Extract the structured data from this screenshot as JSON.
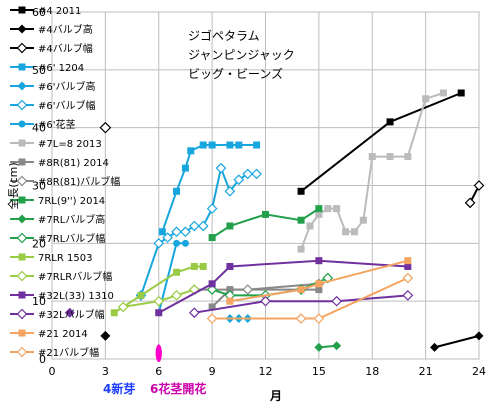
{
  "chart_data": {
    "type": "line",
    "title_lines": [
      "ジゴペタラム",
      "ジャンピンジャック",
      "ビッグ・ビーンズ"
    ],
    "ylabel": "全長(cm)",
    "xlabel": "月",
    "xlim": [
      0,
      24
    ],
    "ylim": [
      0,
      60
    ],
    "xticks": [
      0,
      3,
      6,
      9,
      12,
      15,
      18,
      21,
      24
    ],
    "yticks": [
      0,
      10,
      20,
      30,
      40,
      50,
      60
    ],
    "grid": true,
    "legend_position": "left-inside",
    "series": [
      {
        "name": "#4 2011",
        "color": "#000000",
        "marker": "square",
        "style": "solid",
        "points": [
          [
            14,
            29
          ],
          [
            19,
            41
          ],
          [
            23,
            46
          ]
        ]
      },
      {
        "name": "#4バルブ高",
        "color": "#000000",
        "marker": "diamond",
        "style": "solid",
        "points": [
          [
            21.5,
            2
          ],
          [
            24,
            4
          ]
        ]
      },
      {
        "name": "#4バルブ幅",
        "color": "#000000",
        "marker": "diamond-open",
        "style": "solid",
        "points": [
          [
            23.5,
            27
          ],
          [
            24,
            30
          ]
        ]
      },
      {
        "name": "#6' 1204",
        "color": "#17a6dd",
        "marker": "square",
        "style": "solid",
        "points": [
          [
            6.2,
            22
          ],
          [
            7,
            29
          ],
          [
            7.5,
            33
          ],
          [
            7.8,
            36
          ],
          [
            8.5,
            37
          ],
          [
            9,
            37
          ],
          [
            10,
            37
          ],
          [
            10.5,
            37
          ],
          [
            11.5,
            37
          ]
        ]
      },
      {
        "name": "#6'バルブ高",
        "color": "#17a6dd",
        "marker": "diamond",
        "style": "solid",
        "points": [
          [
            10,
            7
          ],
          [
            10.5,
            7
          ],
          [
            11,
            7
          ]
        ]
      },
      {
        "name": "#6'バルブ幅",
        "color": "#17a6dd",
        "marker": "diamond-open",
        "style": "solid",
        "points": [
          [
            5,
            11
          ],
          [
            6,
            20
          ],
          [
            6.5,
            21
          ],
          [
            7,
            22
          ],
          [
            7.5,
            22
          ],
          [
            8,
            23
          ],
          [
            8.5,
            23
          ],
          [
            9,
            26
          ],
          [
            9.5,
            33
          ],
          [
            10,
            29
          ],
          [
            10.5,
            31
          ],
          [
            11,
            32
          ],
          [
            11.5,
            32
          ]
        ]
      },
      {
        "name": "#6'花茎",
        "color": "#17a6dd",
        "marker": "circle",
        "style": "solid",
        "points": [
          [
            6,
            8
          ],
          [
            7,
            20
          ],
          [
            7.5,
            20
          ]
        ]
      },
      {
        "name": "#7L=8 2013",
        "color": "#bbbbbb",
        "marker": "square",
        "style": "solid",
        "points": [
          [
            14,
            19
          ],
          [
            14.5,
            23
          ],
          [
            15,
            25
          ],
          [
            15.5,
            26
          ],
          [
            16,
            26
          ],
          [
            16.5,
            22
          ],
          [
            17,
            22
          ],
          [
            17.5,
            24
          ],
          [
            18,
            35
          ],
          [
            19,
            35
          ],
          [
            20,
            35
          ],
          [
            21,
            45
          ],
          [
            22,
            46
          ]
        ]
      },
      {
        "name": "#8R(81) 2014",
        "color": "#888888",
        "marker": "square",
        "style": "solid",
        "points": [
          [
            9,
            9
          ],
          [
            10,
            12
          ],
          [
            15,
            12
          ]
        ]
      },
      {
        "name": "#8R(81)バルブ幅",
        "color": "#888888",
        "marker": "diamond-open",
        "style": "solid",
        "points": [
          [
            8,
            12
          ],
          [
            11,
            12
          ],
          [
            15,
            13
          ]
        ]
      },
      {
        "name": "7RL(9'') 2014",
        "color": "#22a04a",
        "marker": "square",
        "style": "solid",
        "points": [
          [
            9,
            21
          ],
          [
            10,
            23
          ],
          [
            12,
            25
          ],
          [
            14,
            24
          ],
          [
            15,
            26
          ]
        ]
      },
      {
        "name": "#7RLバルブ高",
        "color": "#22a04a",
        "marker": "diamond",
        "style": "solid",
        "points": [
          [
            15,
            2
          ],
          [
            16,
            2.3
          ]
        ]
      },
      {
        "name": "#7RLバルブ幅",
        "color": "#22a04a",
        "marker": "diamond-open",
        "style": "solid",
        "points": [
          [
            9,
            12
          ],
          [
            10,
            11
          ],
          [
            12,
            11
          ],
          [
            14,
            12
          ],
          [
            15.5,
            14
          ]
        ]
      },
      {
        "name": "7RLR 1503",
        "color": "#99cc44",
        "marker": "square",
        "style": "solid",
        "points": [
          [
            3.5,
            8
          ],
          [
            5,
            11
          ],
          [
            7,
            15
          ],
          [
            8,
            16
          ],
          [
            8.5,
            16
          ]
        ]
      },
      {
        "name": "#7RLRバルブ幅",
        "color": "#99cc44",
        "marker": "diamond-open",
        "style": "solid",
        "points": [
          [
            4,
            9
          ],
          [
            6,
            10
          ],
          [
            7,
            11
          ],
          [
            8,
            12
          ]
        ]
      },
      {
        "name": "#32L(33) 1310",
        "color": "#7030a0",
        "marker": "square",
        "style": "solid",
        "points": [
          [
            6,
            8
          ],
          [
            9,
            13
          ],
          [
            10,
            16
          ],
          [
            15,
            17
          ],
          [
            20,
            16
          ]
        ]
      },
      {
        "name": "#32Lバルブ幅",
        "color": "#7030a0",
        "marker": "diamond-open",
        "style": "solid",
        "points": [
          [
            8,
            8
          ],
          [
            12,
            10
          ],
          [
            16,
            10
          ],
          [
            20,
            11
          ]
        ]
      },
      {
        "name": "#21 2014",
        "color": "#f4a460",
        "marker": "square",
        "style": "solid",
        "points": [
          [
            10,
            10
          ],
          [
            14,
            12
          ],
          [
            15,
            13
          ],
          [
            20,
            17
          ]
        ]
      },
      {
        "name": "#21バルブ幅",
        "color": "#f4a460",
        "marker": "diamond-open",
        "style": "solid",
        "points": [
          [
            9,
            7
          ],
          [
            14,
            7
          ],
          [
            15,
            7
          ],
          [
            20,
            14
          ]
        ]
      }
    ],
    "extra_markers": [
      {
        "type": "diamond",
        "color": "#000000",
        "x": 3,
        "y": 4
      },
      {
        "type": "ellipse",
        "color": "#ff00cc",
        "x": 6,
        "y": 1
      },
      {
        "type": "diamond",
        "color": "#7030a0",
        "x": 1,
        "y": 8
      },
      {
        "type": "diamond-open",
        "color": "#000000",
        "x": 3,
        "y": 40
      }
    ],
    "annotations": [
      {
        "text": "4新芽",
        "color": "#1f3fff",
        "x": 3.5
      },
      {
        "text": "6花茎開花",
        "color": "#cc00aa",
        "x": 8
      }
    ]
  }
}
